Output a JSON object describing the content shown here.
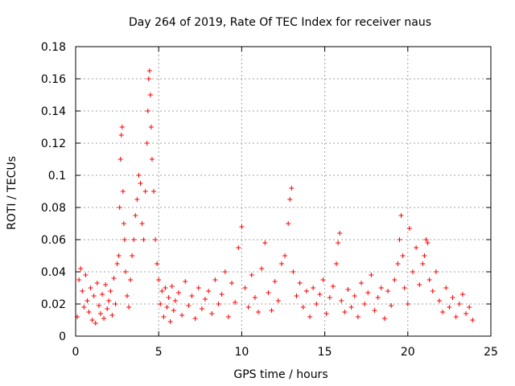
{
  "chart_data": {
    "type": "scatter",
    "title": "Day 264 of 2019, Rate Of TEC Index for receiver naus",
    "xlabel": "GPS time / hours",
    "ylabel": "ROTI / TECUs",
    "xlim": [
      0,
      25
    ],
    "ylim": [
      0,
      0.18
    ],
    "xticks": [
      0,
      5,
      10,
      15,
      20,
      25
    ],
    "yticks": [
      0,
      0.02,
      0.04,
      0.06,
      0.08,
      0.1,
      0.12,
      0.14,
      0.16,
      0.18
    ],
    "xtick_labels": [
      "0",
      "5",
      "10",
      "15",
      "20",
      "25"
    ],
    "ytick_labels": [
      "0",
      "0.02",
      "0.04",
      "0.06",
      "0.08",
      "0.1",
      "0.12",
      "0.14",
      "0.16",
      "0.18"
    ],
    "grid": true,
    "marker": "+",
    "color": "#ff0000",
    "series": [
      {
        "name": "ROTI",
        "points": [
          [
            0.1,
            0.012
          ],
          [
            0.2,
            0.035
          ],
          [
            0.3,
            0.042
          ],
          [
            0.4,
            0.028
          ],
          [
            0.5,
            0.018
          ],
          [
            0.6,
            0.038
          ],
          [
            0.7,
            0.022
          ],
          [
            0.8,
            0.015
          ],
          [
            0.9,
            0.03
          ],
          [
            1.0,
            0.01
          ],
          [
            1.1,
            0.025
          ],
          [
            1.2,
            0.008
          ],
          [
            1.3,
            0.033
          ],
          [
            1.4,
            0.019
          ],
          [
            1.5,
            0.014
          ],
          [
            1.6,
            0.026
          ],
          [
            1.7,
            0.011
          ],
          [
            1.8,
            0.032
          ],
          [
            1.9,
            0.017
          ],
          [
            2.0,
            0.022
          ],
          [
            2.1,
            0.028
          ],
          [
            2.2,
            0.013
          ],
          [
            2.3,
            0.036
          ],
          [
            2.4,
            0.02
          ],
          [
            2.5,
            0.045
          ],
          [
            2.6,
            0.05
          ],
          [
            2.65,
            0.08
          ],
          [
            2.7,
            0.11
          ],
          [
            2.75,
            0.125
          ],
          [
            2.8,
            0.13
          ],
          [
            2.85,
            0.09
          ],
          [
            2.9,
            0.07
          ],
          [
            2.95,
            0.06
          ],
          [
            3.0,
            0.04
          ],
          [
            3.1,
            0.025
          ],
          [
            3.2,
            0.018
          ],
          [
            3.3,
            0.035
          ],
          [
            3.4,
            0.05
          ],
          [
            3.5,
            0.06
          ],
          [
            3.6,
            0.075
          ],
          [
            3.7,
            0.085
          ],
          [
            3.8,
            0.1
          ],
          [
            3.9,
            0.095
          ],
          [
            4.0,
            0.07
          ],
          [
            4.1,
            0.06
          ],
          [
            4.2,
            0.09
          ],
          [
            4.3,
            0.12
          ],
          [
            4.35,
            0.14
          ],
          [
            4.4,
            0.16
          ],
          [
            4.45,
            0.165
          ],
          [
            4.5,
            0.15
          ],
          [
            4.55,
            0.13
          ],
          [
            4.6,
            0.11
          ],
          [
            4.7,
            0.09
          ],
          [
            4.8,
            0.06
          ],
          [
            4.9,
            0.045
          ],
          [
            5.0,
            0.035
          ],
          [
            5.1,
            0.02
          ],
          [
            5.2,
            0.028
          ],
          [
            5.3,
            0.012
          ],
          [
            5.4,
            0.03
          ],
          [
            5.5,
            0.018
          ],
          [
            5.6,
            0.024
          ],
          [
            5.7,
            0.009
          ],
          [
            5.8,
            0.031
          ],
          [
            5.9,
            0.016
          ],
          [
            6.0,
            0.022
          ],
          [
            6.2,
            0.027
          ],
          [
            6.4,
            0.013
          ],
          [
            6.6,
            0.034
          ],
          [
            6.8,
            0.019
          ],
          [
            7.0,
            0.025
          ],
          [
            7.2,
            0.011
          ],
          [
            7.4,
            0.03
          ],
          [
            7.6,
            0.017
          ],
          [
            7.8,
            0.023
          ],
          [
            8.0,
            0.028
          ],
          [
            8.2,
            0.014
          ],
          [
            8.4,
            0.035
          ],
          [
            8.6,
            0.02
          ],
          [
            8.8,
            0.026
          ],
          [
            9.0,
            0.04
          ],
          [
            9.2,
            0.012
          ],
          [
            9.4,
            0.033
          ],
          [
            9.6,
            0.021
          ],
          [
            9.8,
            0.055
          ],
          [
            10.0,
            0.068
          ],
          [
            10.2,
            0.03
          ],
          [
            10.4,
            0.018
          ],
          [
            10.6,
            0.038
          ],
          [
            10.8,
            0.024
          ],
          [
            11.0,
            0.015
          ],
          [
            11.2,
            0.042
          ],
          [
            11.4,
            0.058
          ],
          [
            11.6,
            0.027
          ],
          [
            11.8,
            0.016
          ],
          [
            12.0,
            0.034
          ],
          [
            12.2,
            0.022
          ],
          [
            12.4,
            0.045
          ],
          [
            12.6,
            0.05
          ],
          [
            12.8,
            0.07
          ],
          [
            12.9,
            0.085
          ],
          [
            13.0,
            0.092
          ],
          [
            13.1,
            0.04
          ],
          [
            13.3,
            0.025
          ],
          [
            13.5,
            0.033
          ],
          [
            13.7,
            0.018
          ],
          [
            13.9,
            0.028
          ],
          [
            14.1,
            0.012
          ],
          [
            14.3,
            0.03
          ],
          [
            14.5,
            0.02
          ],
          [
            14.7,
            0.026
          ],
          [
            14.9,
            0.035
          ],
          [
            15.1,
            0.014
          ],
          [
            15.3,
            0.024
          ],
          [
            15.5,
            0.031
          ],
          [
            15.7,
            0.045
          ],
          [
            15.8,
            0.058
          ],
          [
            15.9,
            0.064
          ],
          [
            16.0,
            0.022
          ],
          [
            16.2,
            0.015
          ],
          [
            16.4,
            0.029
          ],
          [
            16.6,
            0.018
          ],
          [
            16.8,
            0.025
          ],
          [
            17.0,
            0.012
          ],
          [
            17.2,
            0.033
          ],
          [
            17.4,
            0.02
          ],
          [
            17.6,
            0.027
          ],
          [
            17.8,
            0.038
          ],
          [
            18.0,
            0.016
          ],
          [
            18.2,
            0.024
          ],
          [
            18.4,
            0.03
          ],
          [
            18.6,
            0.011
          ],
          [
            18.8,
            0.028
          ],
          [
            19.0,
            0.019
          ],
          [
            19.2,
            0.035
          ],
          [
            19.4,
            0.045
          ],
          [
            19.5,
            0.06
          ],
          [
            19.6,
            0.075
          ],
          [
            19.7,
            0.05
          ],
          [
            19.8,
            0.03
          ],
          [
            20.0,
            0.02
          ],
          [
            20.1,
            0.067
          ],
          [
            20.3,
            0.04
          ],
          [
            20.5,
            0.055
          ],
          [
            20.7,
            0.032
          ],
          [
            20.9,
            0.045
          ],
          [
            21.0,
            0.05
          ],
          [
            21.1,
            0.06
          ],
          [
            21.2,
            0.058
          ],
          [
            21.3,
            0.035
          ],
          [
            21.5,
            0.028
          ],
          [
            21.7,
            0.04
          ],
          [
            21.9,
            0.022
          ],
          [
            22.1,
            0.015
          ],
          [
            22.3,
            0.03
          ],
          [
            22.5,
            0.018
          ],
          [
            22.7,
            0.024
          ],
          [
            22.9,
            0.012
          ],
          [
            23.1,
            0.02
          ],
          [
            23.3,
            0.026
          ],
          [
            23.5,
            0.014
          ],
          [
            23.7,
            0.018
          ],
          [
            23.9,
            0.01
          ]
        ]
      }
    ]
  }
}
